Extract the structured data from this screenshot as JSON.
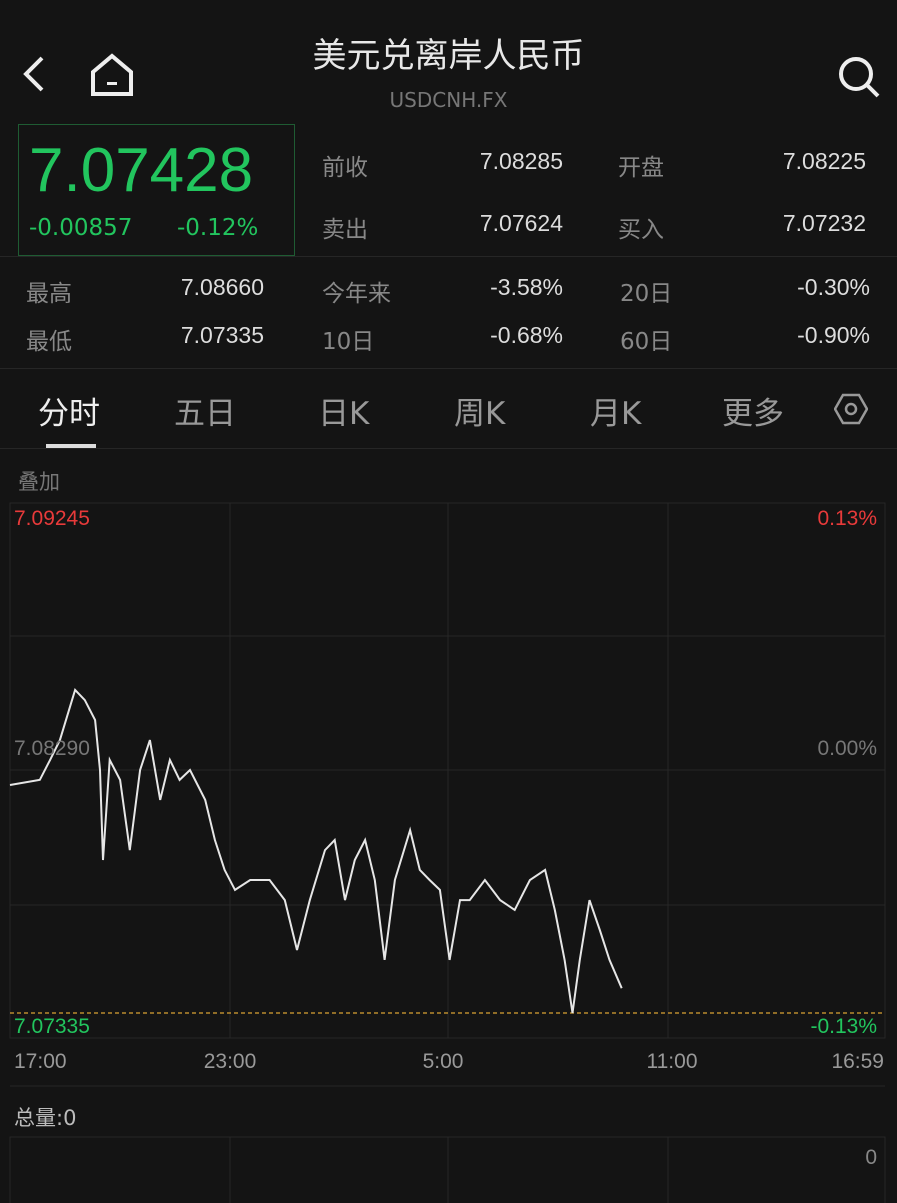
{
  "header": {
    "title": "美元兑离岸人民币",
    "symbol": "USDCNH.FX",
    "back_icon": "chevron-left-icon",
    "home_icon": "home-icon",
    "search_icon": "search-icon"
  },
  "quote": {
    "price": "7.07428",
    "change": "-0.00857",
    "change_pct": "-0.12%",
    "color": "#22c55e",
    "stats": [
      {
        "label": "前收",
        "value": "7.08285"
      },
      {
        "label": "开盘",
        "value": "7.08225"
      },
      {
        "label": "卖出",
        "value": "7.07624"
      },
      {
        "label": "买入",
        "value": "7.07232"
      },
      {
        "label": "最高",
        "value": "7.08660"
      },
      {
        "label": "今年来",
        "value": "-3.58%"
      },
      {
        "label": "20日",
        "value": "-0.30%"
      },
      {
        "label": "最低",
        "value": "7.07335"
      },
      {
        "label": "10日",
        "value": "-0.68%"
      },
      {
        "label": "60日",
        "value": "-0.90%"
      }
    ]
  },
  "tabs": [
    {
      "label": "分时",
      "active": true
    },
    {
      "label": "五日"
    },
    {
      "label": "日K"
    },
    {
      "label": "周K"
    },
    {
      "label": "月K"
    },
    {
      "label": "更多"
    }
  ],
  "settings_icon": "hexagon-settings-icon",
  "overlay_label": "叠加",
  "chart_data": {
    "type": "line",
    "y_labels": {
      "top": "7.09245",
      "mid": "7.08290",
      "bottom": "7.07335"
    },
    "pct_labels": {
      "top": "0.13%",
      "mid": "0.00%",
      "bottom": "-0.13%"
    },
    "x_ticks": [
      "17:00",
      "23:00",
      "5:00",
      "11:00",
      "16:59"
    ],
    "ylim": [
      7.07335,
      7.09245
    ],
    "low_line": 7.07335,
    "colors": {
      "up": "#e83a3a",
      "down": "#22c55e",
      "line": "#e6e6e6",
      "low_line": "#d9a233"
    },
    "x": [
      "17:00",
      "17:49",
      "18:06",
      "18:22",
      "18:47",
      "19:03",
      "19:20",
      "19:28",
      "19:33",
      "19:44",
      "20:01",
      "20:17",
      "20:34",
      "20:50",
      "21:07",
      "21:23",
      "21:39",
      "21:56",
      "22:21",
      "22:37",
      "22:53",
      "23:10",
      "23:35",
      "00:07",
      "00:32",
      "00:52",
      "01:13",
      "01:38",
      "01:54",
      "02:11",
      "02:27",
      "02:44",
      "03:00",
      "03:16",
      "03:33",
      "03:58",
      "04:14",
      "04:30",
      "04:47",
      "05:03",
      "05:20",
      "05:36",
      "06:01",
      "06:26",
      "06:50",
      "07:15",
      "07:40",
      "07:56",
      "08:12",
      "08:25",
      "08:37",
      "08:53",
      "09:10",
      "09:26",
      "09:46"
    ],
    "y": [
      7.08189,
      7.08208,
      7.08283,
      7.08357,
      7.08545,
      7.08507,
      7.08432,
      7.08245,
      7.07908,
      7.08283,
      7.08208,
      7.07945,
      7.08245,
      7.08357,
      7.08133,
      7.08283,
      7.08208,
      7.08245,
      7.08133,
      7.07983,
      7.07871,
      7.07796,
      7.07833,
      7.07833,
      7.07758,
      7.07571,
      7.07758,
      7.07945,
      7.07983,
      7.07758,
      7.07908,
      7.07983,
      7.07833,
      7.07534,
      7.07833,
      7.0802,
      7.07871,
      7.07833,
      7.07796,
      7.07534,
      7.07758,
      7.07758,
      7.07833,
      7.07758,
      7.07721,
      7.07833,
      7.07871,
      7.07721,
      7.07534,
      7.07335,
      7.07534,
      7.07758,
      7.07646,
      7.07534,
      7.07428
    ]
  },
  "volume": {
    "label": "总量:0",
    "axis_max": "0"
  }
}
